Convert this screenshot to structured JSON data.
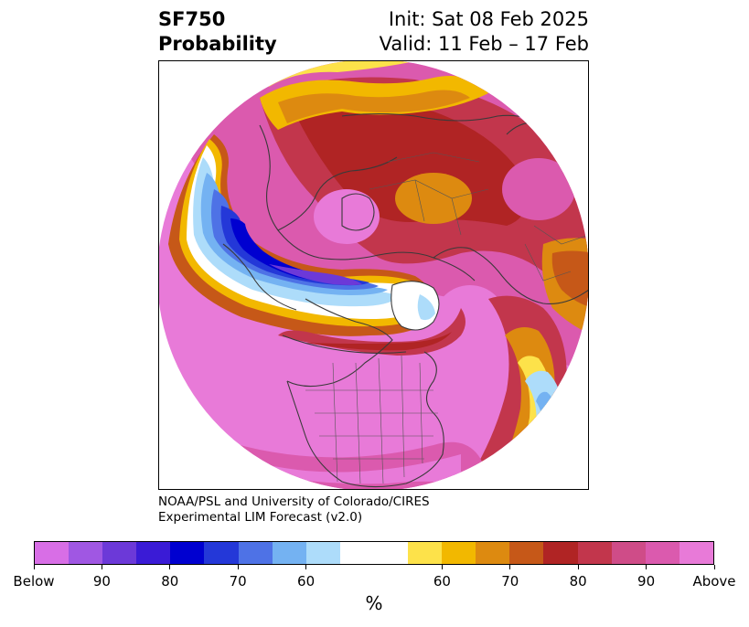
{
  "header": {
    "title_line1": "SF750",
    "title_line2": "Probability",
    "init": "Init: Sat 08 Feb 2025",
    "valid": "Valid: 11 Feb – 17 Feb"
  },
  "credit": {
    "line1": "NOAA/PSL and University of Colorado/CIRES",
    "line2": "Experimental LIM Forecast (v2.0)"
  },
  "colorbar": {
    "colors": [
      "#d86ee6",
      "#a057e3",
      "#6c39d8",
      "#3a1bd6",
      "#0000d0",
      "#2438d8",
      "#4e72e6",
      "#74b2f2",
      "#addcfa",
      "#ffffff",
      "#ffffff",
      "#fde24a",
      "#f2b800",
      "#dd8a10",
      "#c65818",
      "#b02424",
      "#c2364c",
      "#cf4c88",
      "#db5aae",
      "#e87ad8"
    ],
    "ticks": [
      "Below",
      "90",
      "80",
      "70",
      "60",
      "60",
      "70",
      "80",
      "90",
      "Above"
    ],
    "units": "%"
  },
  "map": {
    "projection": "north-polar-stereographic",
    "colors": {
      "above_max": "#e87ad8",
      "above_90": "#db5aae",
      "above_80": "#c2364c",
      "above_70": "#b02424",
      "above_60": "#dd8a10",
      "above_50": "#f2b800",
      "above_40": "#fde24a",
      "neutral": "#ffffff",
      "below_40": "#addcfa",
      "below_50": "#74b2f2",
      "below_60": "#4e72e6",
      "below_70": "#2438d8",
      "below_80": "#0000d0",
      "below_max": "#6c39d8",
      "coastline": "#3a3a3a"
    }
  }
}
